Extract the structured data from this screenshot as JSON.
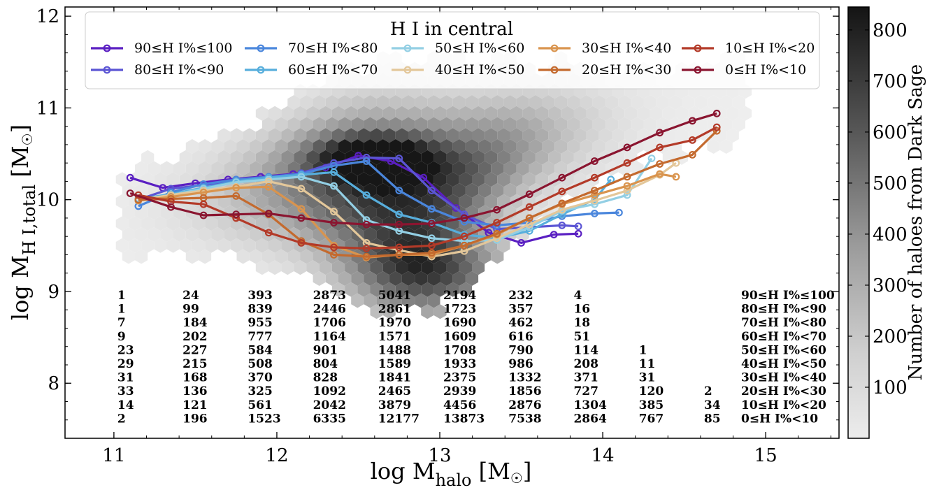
{
  "chart_data": {
    "type": "line",
    "xlabel": "log M",
    "xlabel_sub": "halo",
    "xlabel_unit": " [M",
    "xlabel_unit_end": "]",
    "ylabel": "log M",
    "ylabel_sub": "H I,total",
    "ylabel_unit": " [M",
    "ylabel_unit_end": "]",
    "xlim": [
      10.7,
      15.45
    ],
    "ylim": [
      7.4,
      12.1
    ],
    "xticks": [
      11,
      12,
      13,
      14,
      15
    ],
    "yticks": [
      8,
      9,
      10,
      11,
      12
    ],
    "legend_title": "H I in central",
    "legend_location": "top-center",
    "colorbar": {
      "label": "Number of haloes from Dark Sage",
      "ticks": [
        100,
        200,
        300,
        400,
        500,
        600,
        700,
        800
      ],
      "range": [
        0,
        845
      ]
    },
    "series": [
      {
        "name": "90≤H I%≤100",
        "color": "#5a1fc2",
        "x": [
          11.1,
          11.3,
          11.5,
          11.7,
          11.9,
          12.1,
          12.3,
          12.5,
          12.7,
          12.9,
          13.1,
          13.3,
          13.5,
          13.7,
          13.85
        ],
        "y": [
          10.24,
          10.13,
          10.18,
          10.22,
          10.25,
          10.28,
          10.35,
          10.48,
          10.42,
          10.24,
          9.91,
          9.64,
          9.53,
          9.62,
          9.63
        ]
      },
      {
        "name": "80≤H I%<90",
        "color": "#5b55d4",
        "x": [
          11.15,
          11.35,
          11.55,
          11.75,
          11.95,
          12.15,
          12.35,
          12.55,
          12.75,
          12.95,
          13.15,
          13.35,
          13.55,
          13.75,
          13.85
        ],
        "y": [
          10.0,
          10.12,
          10.16,
          10.2,
          10.24,
          10.29,
          10.4,
          10.46,
          10.45,
          10.1,
          9.84,
          9.68,
          9.7,
          9.72,
          9.71
        ]
      },
      {
        "name": "70≤H I%<80",
        "color": "#4a86dc",
        "x": [
          11.15,
          11.35,
          11.55,
          11.75,
          11.95,
          12.15,
          12.35,
          12.55,
          12.75,
          12.95,
          13.15,
          13.35,
          13.55,
          13.75,
          13.95,
          14.1
        ],
        "y": [
          9.93,
          10.08,
          10.17,
          10.22,
          10.25,
          10.28,
          10.37,
          10.42,
          10.1,
          9.9,
          9.76,
          9.72,
          9.75,
          9.82,
          9.85,
          9.86
        ]
      },
      {
        "name": "60≤H I%<70",
        "color": "#57aedc",
        "x": [
          11.15,
          11.35,
          11.55,
          11.75,
          11.95,
          12.15,
          12.35,
          12.55,
          12.75,
          12.95,
          13.15,
          13.35,
          13.55,
          13.75,
          13.95,
          14.05
        ],
        "y": [
          10.01,
          10.06,
          10.13,
          10.2,
          10.24,
          10.27,
          10.3,
          10.05,
          9.84,
          9.75,
          9.62,
          9.58,
          9.66,
          9.84,
          10.0,
          10.22
        ]
      },
      {
        "name": "50≤H I%<60",
        "color": "#93cfe4",
        "x": [
          11.15,
          11.35,
          11.55,
          11.75,
          11.95,
          12.15,
          12.35,
          12.55,
          12.75,
          12.95,
          13.15,
          13.35,
          13.55,
          13.75,
          13.95,
          14.15,
          14.3
        ],
        "y": [
          9.99,
          10.05,
          10.12,
          10.19,
          10.22,
          10.25,
          10.15,
          9.78,
          9.66,
          9.58,
          9.55,
          9.56,
          9.7,
          9.88,
          9.95,
          10.05,
          10.45
        ]
      },
      {
        "name": "40≤H I%<50",
        "color": "#e3c79a",
        "x": [
          11.15,
          11.35,
          11.55,
          11.75,
          11.95,
          12.15,
          12.35,
          12.55,
          12.75,
          12.95,
          13.15,
          13.35,
          13.55,
          13.75,
          13.95,
          14.15,
          14.35,
          14.45
        ],
        "y": [
          10.0,
          10.05,
          10.1,
          10.14,
          10.2,
          10.12,
          9.87,
          9.53,
          9.45,
          9.38,
          9.44,
          9.58,
          9.73,
          9.89,
          9.99,
          10.1,
          10.27,
          10.4
        ]
      },
      {
        "name": "30≤H I%<40",
        "color": "#d9944e",
        "x": [
          11.15,
          11.35,
          11.55,
          11.75,
          11.95,
          12.15,
          12.35,
          12.55,
          12.75,
          12.95,
          13.15,
          13.35,
          13.55,
          13.75,
          13.95,
          14.15,
          14.35,
          14.45
        ],
        "y": [
          9.99,
          10.03,
          10.08,
          10.13,
          10.14,
          9.9,
          9.5,
          9.37,
          9.4,
          9.4,
          9.5,
          9.62,
          9.8,
          9.95,
          10.05,
          10.15,
          10.28,
          10.25
        ]
      },
      {
        "name": "20≤H I%<30",
        "color": "#c46a2e",
        "x": [
          11.15,
          11.35,
          11.55,
          11.75,
          11.95,
          12.15,
          12.35,
          12.55,
          12.75,
          12.95,
          13.15,
          13.35,
          13.55,
          13.75,
          13.95,
          14.15,
          14.35,
          14.55,
          14.7
        ],
        "y": [
          10.0,
          10.01,
          10.02,
          10.04,
          9.84,
          9.55,
          9.4,
          9.38,
          9.4,
          9.42,
          9.5,
          9.63,
          9.8,
          9.96,
          10.1,
          10.25,
          10.39,
          10.49,
          10.75
        ]
      },
      {
        "name": "10≤H I%<20",
        "color": "#b33a28",
        "x": [
          11.15,
          11.35,
          11.55,
          11.75,
          11.95,
          12.15,
          12.35,
          12.55,
          12.75,
          12.95,
          13.15,
          13.35,
          13.55,
          13.75,
          13.95,
          14.15,
          14.35,
          14.55,
          14.7
        ],
        "y": [
          10.05,
          9.98,
          9.95,
          9.8,
          9.64,
          9.53,
          9.48,
          9.47,
          9.48,
          9.5,
          9.6,
          9.75,
          9.92,
          10.09,
          10.24,
          10.4,
          10.57,
          10.65,
          10.79
        ]
      },
      {
        "name": "0≤H I%<10",
        "color": "#8a1530",
        "x": [
          11.1,
          11.35,
          11.55,
          11.75,
          11.95,
          12.15,
          12.35,
          12.55,
          12.75,
          12.95,
          13.15,
          13.35,
          13.55,
          13.75,
          13.95,
          14.15,
          14.35,
          14.55,
          14.7
        ],
        "y": [
          10.07,
          9.92,
          9.83,
          9.84,
          9.85,
          9.8,
          9.75,
          9.73,
          9.73,
          9.74,
          9.8,
          9.89,
          10.06,
          10.24,
          10.42,
          10.57,
          10.73,
          10.86,
          10.94
        ]
      }
    ],
    "count_table": {
      "columns_x": [
        11.0,
        11.4,
        11.8,
        12.2,
        12.6,
        13.0,
        13.4,
        13.8,
        14.2,
        14.6
      ],
      "rows": [
        {
          "label": "90≤H I%≤100",
          "counts": [
            "1",
            "24",
            "393",
            "2873",
            "5041",
            "2194",
            "232",
            "4",
            "",
            ""
          ]
        },
        {
          "label": "80≤H I%<90",
          "counts": [
            "1",
            "99",
            "839",
            "2446",
            "2861",
            "1723",
            "357",
            "16",
            "",
            ""
          ]
        },
        {
          "label": "70≤H I%<80",
          "counts": [
            "7",
            "184",
            "955",
            "1706",
            "1970",
            "1690",
            "462",
            "18",
            "",
            ""
          ]
        },
        {
          "label": "60≤H I%<70",
          "counts": [
            "9",
            "202",
            "777",
            "1164",
            "1571",
            "1609",
            "616",
            "51",
            "",
            ""
          ]
        },
        {
          "label": "50≤H I%<60",
          "counts": [
            "23",
            "227",
            "584",
            "901",
            "1488",
            "1708",
            "790",
            "114",
            "1",
            ""
          ]
        },
        {
          "label": "40≤H I%<50",
          "counts": [
            "29",
            "215",
            "508",
            "804",
            "1589",
            "1933",
            "986",
            "208",
            "11",
            ""
          ]
        },
        {
          "label": "30≤H I%<40",
          "counts": [
            "31",
            "168",
            "370",
            "828",
            "1841",
            "2375",
            "1332",
            "371",
            "31",
            ""
          ]
        },
        {
          "label": "20≤H I%<30",
          "counts": [
            "33",
            "136",
            "325",
            "1092",
            "2465",
            "2939",
            "1856",
            "727",
            "120",
            "2"
          ]
        },
        {
          "label": "10≤H I%<20",
          "counts": [
            "14",
            "121",
            "561",
            "2042",
            "3879",
            "4456",
            "2876",
            "1304",
            "385",
            "34"
          ]
        },
        {
          "label": "0≤H I%<10",
          "counts": [
            "2",
            "196",
            "1523",
            "6335",
            "12177",
            "13873",
            "7538",
            "2864",
            "767",
            "85"
          ]
        }
      ]
    }
  }
}
